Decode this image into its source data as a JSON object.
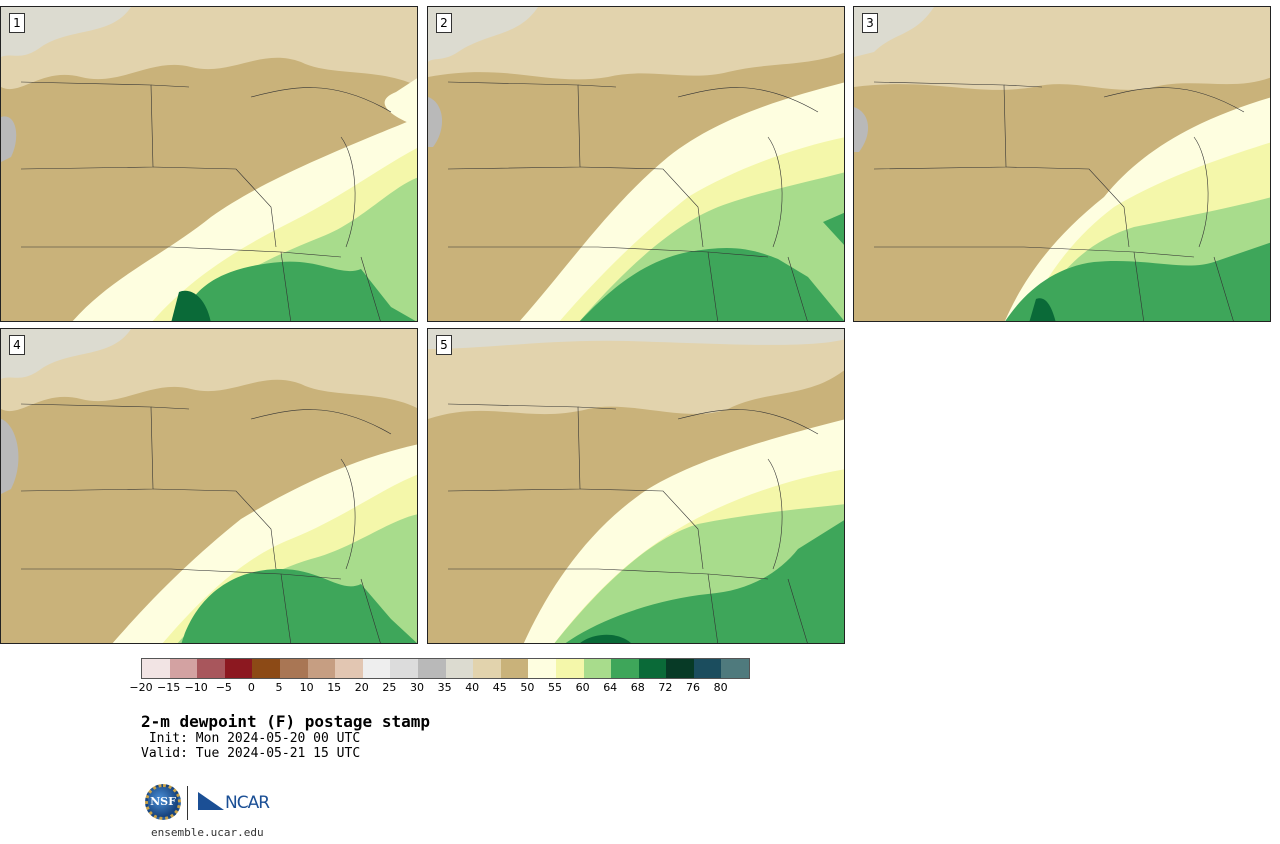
{
  "panels": [
    {
      "label": "1"
    },
    {
      "label": "2"
    },
    {
      "label": "3"
    },
    {
      "label": "4"
    },
    {
      "label": "5"
    }
  ],
  "colorbar": {
    "colors": [
      "#f2e4e4",
      "#d3a2a2",
      "#a8565c",
      "#8c1820",
      "#8c4a16",
      "#a97654",
      "#c69e82",
      "#e2c6b2",
      "#eeeeee",
      "#dcdcdc",
      "#b9b9b9",
      "#dcdbd0",
      "#e2d3ad",
      "#c9b27a",
      "#fefee0",
      "#f4f7aa",
      "#a8dc8c",
      "#3ea65a",
      "#0a6a38",
      "#073a26",
      "#1b4d5e",
      "#4f7a7d"
    ],
    "tick_labels": [
      "−20",
      "−15",
      "−10",
      "−5",
      "0",
      "5",
      "10",
      "15",
      "20",
      "25",
      "30",
      "35",
      "40",
      "45",
      "50",
      "55",
      "60",
      "64",
      "68",
      "72",
      "76",
      "80"
    ]
  },
  "title": "2-m dewpoint (F) postage stamp",
  "init": " Init: Mon 2024-05-20 00 UTC",
  "valid": "Valid: Tue 2024-05-21 15 UTC",
  "logos": {
    "nsf": "NSF",
    "ncar": "NCAR"
  },
  "url": "ensemble.ucar.edu"
}
